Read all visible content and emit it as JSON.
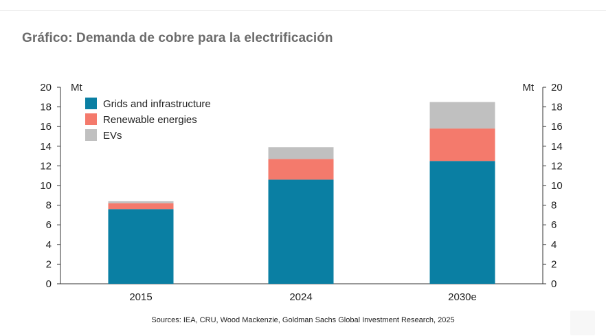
{
  "title": "Gráfico: Demanda de cobre para la electrificación",
  "source": "Sources: IEA, CRU, Wood Mackenzie, Goldman Sachs Global Investment Research, 2025",
  "chart_data": {
    "type": "bar",
    "stacked": true,
    "categories": [
      "2015",
      "2024",
      "2030e"
    ],
    "unit_left": "Mt",
    "unit_right": "Mt",
    "ylim": [
      0,
      20
    ],
    "yticks": [
      0,
      2,
      4,
      6,
      8,
      10,
      12,
      14,
      16,
      18,
      20
    ],
    "ytick_labels": [
      "0",
      "2",
      "4",
      "6",
      "8",
      "10",
      "12",
      "14",
      "16",
      "18",
      "20"
    ],
    "legend_position": "top-left",
    "series": [
      {
        "name": "Grids and infrastructure",
        "color": "#0a7fa3",
        "values": [
          7.6,
          10.6,
          12.5
        ]
      },
      {
        "name": "Renewable energies",
        "color": "#f47a6c",
        "values": [
          0.6,
          2.1,
          3.3
        ]
      },
      {
        "name": "EVs",
        "color": "#c0c0c0",
        "values": [
          0.2,
          1.2,
          2.7
        ]
      }
    ]
  }
}
